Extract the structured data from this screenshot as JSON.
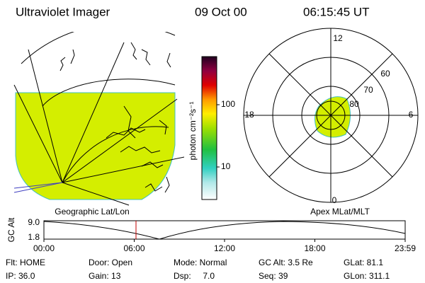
{
  "header": {
    "title": "Ultraviolet Imager",
    "date": "09 Oct 00",
    "time": "06:15:45 UT"
  },
  "colorbar": {
    "label": "photon cm⁻²s⁻¹",
    "ticks": [
      "100",
      "10"
    ]
  },
  "map": {
    "label": "Geographic Lat/Lon"
  },
  "polar": {
    "label": "Apex MLat/MLT",
    "mlt": [
      "12",
      "18",
      "6",
      "0"
    ],
    "lat": [
      "60",
      "70",
      "80"
    ]
  },
  "timeline": {
    "ylabel": "GC Alt",
    "yticks": [
      "9.0",
      "1.8"
    ],
    "xticks": [
      "00:00",
      "06:00",
      "12:00",
      "18:00",
      "23:59"
    ]
  },
  "footer": [
    [
      "Flt: HOME",
      "IP: 36.0"
    ],
    [
      "Door: Open",
      "Gain: 13"
    ],
    [
      "Mode: Normal",
      "Dsp:     7.0"
    ],
    [
      "GC Alt: 3.5 Re",
      "Seq: 39"
    ],
    [
      "GLat: 81.1",
      "GLon: 311.1"
    ]
  ]
}
